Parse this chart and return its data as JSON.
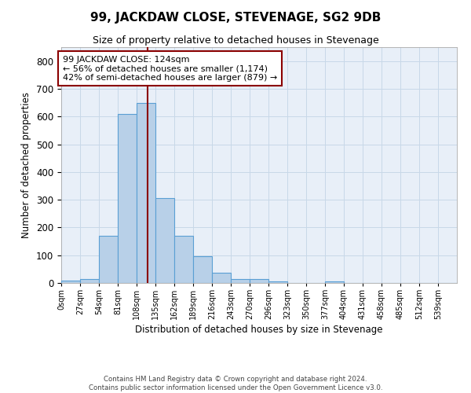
{
  "title": "99, JACKDAW CLOSE, STEVENAGE, SG2 9DB",
  "subtitle": "Size of property relative to detached houses in Stevenage",
  "xlabel": "Distribution of detached houses by size in Stevenage",
  "ylabel": "Number of detached properties",
  "bin_labels": [
    "0sqm",
    "27sqm",
    "54sqm",
    "81sqm",
    "108sqm",
    "135sqm",
    "162sqm",
    "189sqm",
    "216sqm",
    "243sqm",
    "270sqm",
    "296sqm",
    "323sqm",
    "350sqm",
    "377sqm",
    "404sqm",
    "431sqm",
    "458sqm",
    "485sqm",
    "512sqm",
    "539sqm"
  ],
  "bar_heights": [
    8,
    14,
    170,
    610,
    650,
    305,
    170,
    97,
    38,
    14,
    14,
    5,
    0,
    0,
    5,
    0,
    0,
    0,
    0,
    0,
    0
  ],
  "bar_color": "#b8d0e8",
  "bar_edge_color": "#5a9fd4",
  "bin_width": 27,
  "vline_x": 124,
  "vline_color": "#8b0000",
  "annotation_text": "99 JACKDAW CLOSE: 124sqm\n← 56% of detached houses are smaller (1,174)\n42% of semi-detached houses are larger (879) →",
  "annotation_box_color": "#ffffff",
  "annotation_box_edge": "#8b0000",
  "ylim": [
    0,
    850
  ],
  "yticks": [
    0,
    100,
    200,
    300,
    400,
    500,
    600,
    700,
    800
  ],
  "grid_color": "#c8d8e8",
  "bg_color": "#e8eff8",
  "footer1": "Contains HM Land Registry data © Crown copyright and database right 2024.",
  "footer2": "Contains public sector information licensed under the Open Government Licence v3.0."
}
